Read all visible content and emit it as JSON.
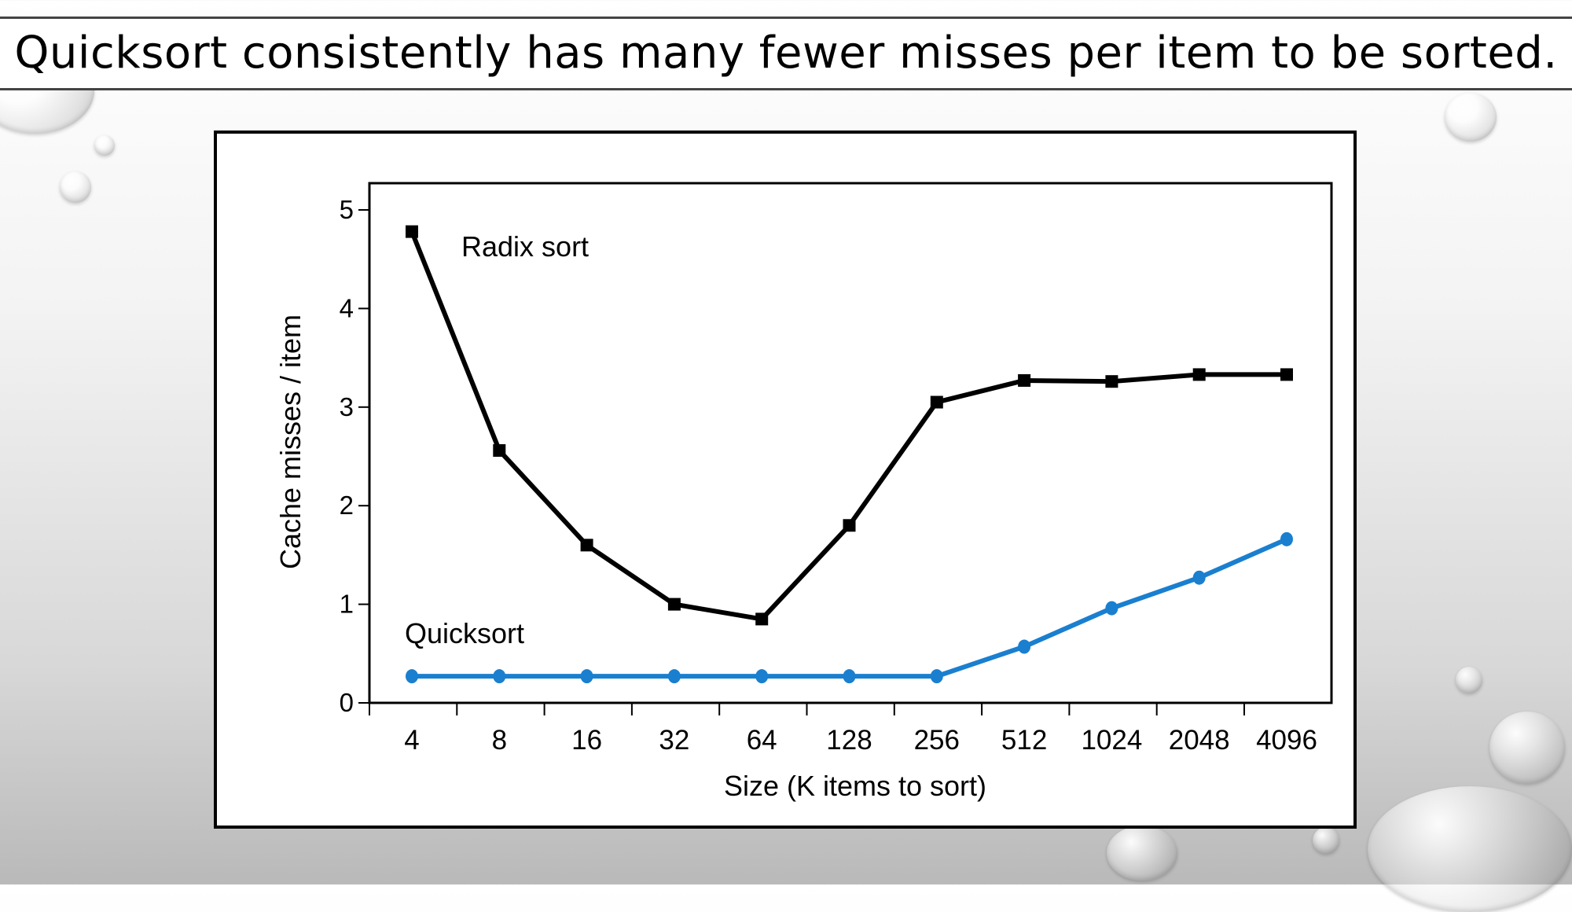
{
  "slide": {
    "title": "Quicksort consistently has many fewer misses per item to be sorted."
  },
  "chart_data": {
    "type": "line",
    "title": "",
    "xlabel": "Size (K items to sort)",
    "ylabel": "Cache misses / item",
    "categories": [
      "4",
      "8",
      "16",
      "32",
      "64",
      "128",
      "256",
      "512",
      "1024",
      "2048",
      "4096"
    ],
    "ylim": [
      0,
      5
    ],
    "yticks": [
      "0",
      "1",
      "2",
      "3",
      "4",
      "5"
    ],
    "grid": false,
    "series": [
      {
        "name": "Radix sort",
        "values": [
          4.78,
          2.56,
          1.6,
          1.0,
          0.85,
          1.8,
          3.05,
          3.27,
          3.26,
          3.33,
          3.33
        ],
        "color": "#000000",
        "marker": "square"
      },
      {
        "name": "Quicksort",
        "values": [
          0.27,
          0.27,
          0.27,
          0.27,
          0.27,
          0.27,
          0.27,
          0.57,
          0.96,
          1.27,
          1.66
        ],
        "color": "#1a7fcf",
        "marker": "circle"
      }
    ]
  }
}
